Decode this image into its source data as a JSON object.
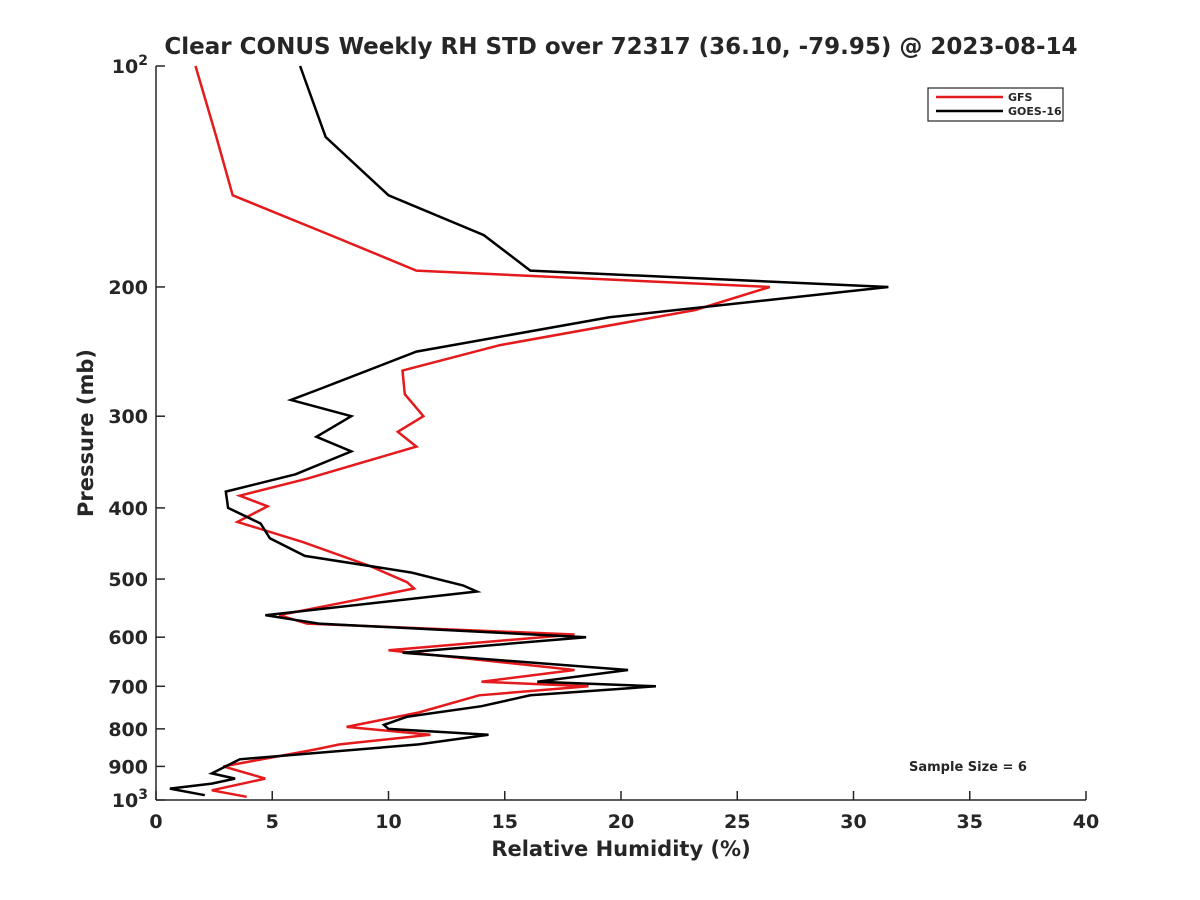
{
  "chart_data": {
    "type": "line",
    "title": "Clear CONUS Weekly RH STD over 72317 (36.10, -79.95) @ 2023-08-14",
    "xlabel": "Relative Humidity (%)",
    "ylabel": "Pressure (mb)",
    "xlim": [
      0,
      40
    ],
    "ylim": [
      100,
      1000
    ],
    "y_scale": "log",
    "y_reversed": true,
    "grid": false,
    "legend_position": "top-right",
    "x_ticks": [
      "0",
      "5",
      "10",
      "15",
      "20",
      "25",
      "30",
      "35",
      "40"
    ],
    "y_ticks": [
      {
        "value": 100,
        "base": "10",
        "exp": "2"
      },
      {
        "value": 200,
        "label": "200"
      },
      {
        "value": 300,
        "label": "300"
      },
      {
        "value": 400,
        "label": "400"
      },
      {
        "value": 500,
        "label": "500"
      },
      {
        "value": 600,
        "label": "600"
      },
      {
        "value": 700,
        "label": "700"
      },
      {
        "value": 800,
        "label": "800"
      },
      {
        "value": 900,
        "label": "900"
      },
      {
        "value": 1000,
        "base": "10",
        "exp": "3"
      }
    ],
    "annotation": "Sample Size = 6",
    "series": [
      {
        "name": "GFS",
        "color": "#e41a1c",
        "points": [
          [
            1.7,
            100
          ],
          [
            2.6,
            125
          ],
          [
            3.3,
            150
          ],
          [
            7.5,
            170
          ],
          [
            11.2,
            190
          ],
          [
            26.4,
            200
          ],
          [
            23.2,
            215
          ],
          [
            14.8,
            240
          ],
          [
            10.6,
            260
          ],
          [
            10.7,
            280
          ],
          [
            11.5,
            300
          ],
          [
            10.4,
            315
          ],
          [
            11.2,
            330
          ],
          [
            6.5,
            365
          ],
          [
            3.6,
            385
          ],
          [
            4.8,
            398
          ],
          [
            3.5,
            418
          ],
          [
            6.3,
            445
          ],
          [
            9.2,
            480
          ],
          [
            10.8,
            505
          ],
          [
            11.1,
            515
          ],
          [
            5.3,
            560
          ],
          [
            6.5,
            575
          ],
          [
            18.0,
            595
          ],
          [
            10.0,
            625
          ],
          [
            18.0,
            665
          ],
          [
            14.0,
            690
          ],
          [
            18.6,
            700
          ],
          [
            13.9,
            720
          ],
          [
            11.3,
            760
          ],
          [
            8.2,
            795
          ],
          [
            11.8,
            815
          ],
          [
            7.9,
            840
          ],
          [
            6.7,
            855
          ],
          [
            2.9,
            900
          ],
          [
            4.7,
            935
          ],
          [
            2.4,
            970
          ],
          [
            3.9,
            990
          ]
        ]
      },
      {
        "name": "GOES-16",
        "color": "#000000",
        "points": [
          [
            6.2,
            100
          ],
          [
            7.3,
            125
          ],
          [
            10.0,
            150
          ],
          [
            14.1,
            170
          ],
          [
            16.1,
            190
          ],
          [
            31.5,
            200
          ],
          [
            19.5,
            220
          ],
          [
            11.2,
            245
          ],
          [
            7.1,
            275
          ],
          [
            5.8,
            285
          ],
          [
            8.4,
            300
          ],
          [
            6.9,
            320
          ],
          [
            8.4,
            335
          ],
          [
            6.0,
            360
          ],
          [
            3.0,
            380
          ],
          [
            3.1,
            400
          ],
          [
            4.5,
            420
          ],
          [
            4.9,
            440
          ],
          [
            6.4,
            465
          ],
          [
            11.0,
            490
          ],
          [
            13.2,
            510
          ],
          [
            13.8,
            520
          ],
          [
            4.7,
            560
          ],
          [
            7.0,
            575
          ],
          [
            18.5,
            600
          ],
          [
            10.6,
            630
          ],
          [
            20.3,
            665
          ],
          [
            16.4,
            690
          ],
          [
            21.5,
            700
          ],
          [
            16.1,
            720
          ],
          [
            14.0,
            745
          ],
          [
            10.8,
            770
          ],
          [
            9.8,
            790
          ],
          [
            10.0,
            800
          ],
          [
            14.3,
            815
          ],
          [
            11.3,
            840
          ],
          [
            3.6,
            880
          ],
          [
            2.4,
            920
          ],
          [
            3.4,
            935
          ],
          [
            2.4,
            950
          ],
          [
            0.6,
            965
          ],
          [
            2.1,
            985
          ]
        ]
      }
    ]
  }
}
